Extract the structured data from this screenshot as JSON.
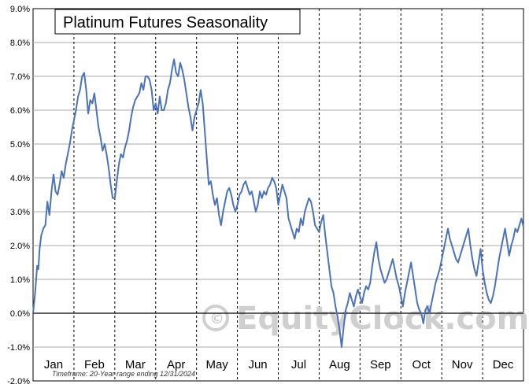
{
  "chart_data": {
    "type": "line",
    "title": "Platinum Futures Seasonality",
    "footnote": "Timeframe: 20-Year range ending 12/31/2024",
    "watermark": "EquityClock.com",
    "ylim": [
      -2.0,
      9.0
    ],
    "y_ticks": [
      "9.0%",
      "8.0%",
      "7.0%",
      "6.0%",
      "5.0%",
      "4.0%",
      "3.0%",
      "2.0%",
      "1.0%",
      "0.0%",
      "-1.0%",
      "-2.0%"
    ],
    "y_tick_values": [
      9,
      8,
      7,
      6,
      5,
      4,
      3,
      2,
      1,
      0,
      -1,
      -2
    ],
    "months": [
      "Jan",
      "Feb",
      "Mar",
      "Apr",
      "May",
      "Jun",
      "Jul",
      "Aug",
      "Sep",
      "Oct",
      "Nov",
      "Dec"
    ],
    "grid": true,
    "zero_line": true,
    "line_color": "#4a73b8",
    "series": [
      {
        "x": [
          0.0,
          0.05,
          0.1,
          0.13,
          0.16,
          0.2,
          0.25,
          0.3,
          0.35,
          0.4,
          0.45,
          0.5,
          0.55,
          0.6,
          0.65,
          0.7,
          0.75,
          0.8,
          0.85,
          0.9,
          0.95,
          1.0,
          1.05,
          1.1,
          1.15,
          1.2,
          1.25,
          1.3,
          1.35,
          1.4,
          1.45,
          1.5,
          1.55,
          1.6,
          1.65,
          1.7,
          1.75,
          1.8,
          1.85,
          1.9,
          1.95,
          2.0,
          2.05,
          2.1,
          2.15,
          2.2,
          2.25,
          2.3,
          2.35,
          2.4,
          2.45,
          2.5,
          2.55,
          2.6,
          2.65,
          2.7,
          2.75,
          2.8,
          2.85,
          2.9,
          2.95,
          3.0,
          3.05,
          3.1,
          3.15,
          3.2,
          3.25,
          3.3,
          3.35,
          3.4,
          3.45,
          3.5,
          3.55,
          3.6,
          3.65,
          3.7,
          3.75,
          3.8,
          3.85,
          3.9,
          3.95,
          4.0,
          4.05,
          4.1,
          4.15,
          4.2,
          4.25,
          4.3,
          4.35,
          4.4,
          4.45,
          4.5,
          4.55,
          4.6,
          4.65,
          4.7,
          4.75,
          4.8,
          4.85,
          4.9,
          4.95,
          5.0,
          5.05,
          5.1,
          5.15,
          5.2,
          5.25,
          5.3,
          5.35,
          5.4,
          5.45,
          5.5,
          5.55,
          5.6,
          5.65,
          5.7,
          5.75,
          5.8,
          5.85,
          5.9,
          5.95,
          6.0,
          6.05,
          6.1,
          6.15,
          6.2,
          6.25,
          6.3,
          6.35,
          6.4,
          6.45,
          6.5,
          6.55,
          6.6,
          6.65,
          6.7,
          6.75,
          6.8,
          6.85,
          6.9,
          6.95,
          7.0,
          7.05,
          7.1,
          7.15,
          7.2,
          7.25,
          7.3,
          7.35,
          7.4,
          7.45,
          7.5,
          7.55,
          7.6,
          7.65,
          7.7,
          7.75,
          7.8,
          7.85,
          7.9,
          7.95,
          8.0,
          8.05,
          8.1,
          8.15,
          8.2,
          8.25,
          8.3,
          8.35,
          8.4,
          8.45,
          8.5,
          8.55,
          8.6,
          8.65,
          8.7,
          8.75,
          8.8,
          8.85,
          8.9,
          8.95,
          9.0,
          9.05,
          9.1,
          9.15,
          9.2,
          9.25,
          9.3,
          9.35,
          9.4,
          9.45,
          9.5,
          9.55,
          9.6,
          9.65,
          9.7,
          9.75,
          9.8,
          9.85,
          9.9,
          9.95,
          10.0,
          10.05,
          10.1,
          10.15,
          10.2,
          10.25,
          10.3,
          10.35,
          10.4,
          10.45,
          10.5,
          10.55,
          10.6,
          10.65,
          10.7,
          10.75,
          10.8,
          10.85,
          10.9,
          10.95,
          11.0,
          11.05,
          11.1,
          11.15,
          11.2,
          11.25,
          11.3,
          11.35,
          11.4,
          11.45,
          11.5,
          11.55,
          11.6,
          11.65,
          11.7,
          11.75,
          11.8,
          11.85,
          11.9,
          11.95,
          12.0
        ],
        "y": [
          0.0,
          0.6,
          1.4,
          1.3,
          1.9,
          2.3,
          2.5,
          2.6,
          3.3,
          2.9,
          3.6,
          4.1,
          3.6,
          3.5,
          3.8,
          4.2,
          4.0,
          4.4,
          4.7,
          5.0,
          5.4,
          5.7,
          6.0,
          6.4,
          6.6,
          7.0,
          7.1,
          6.6,
          5.9,
          6.3,
          6.2,
          6.5,
          6.0,
          5.5,
          5.2,
          4.8,
          5.0,
          4.7,
          4.3,
          3.8,
          3.4,
          3.4,
          3.9,
          4.4,
          4.7,
          4.6,
          4.9,
          5.1,
          5.4,
          5.8,
          6.1,
          6.3,
          6.4,
          6.5,
          6.8,
          6.6,
          7.0,
          7.0,
          6.9,
          6.6,
          6.0,
          6.2,
          5.9,
          6.4,
          6.0,
          6.0,
          6.2,
          6.6,
          6.8,
          7.2,
          7.5,
          7.1,
          7.0,
          7.4,
          7.2,
          6.9,
          6.5,
          6.1,
          5.8,
          5.4,
          5.8,
          6.0,
          6.2,
          6.6,
          6.2,
          5.4,
          4.6,
          3.8,
          3.9,
          3.5,
          3.2,
          3.4,
          2.9,
          2.6,
          3.0,
          3.3,
          3.6,
          3.7,
          3.5,
          3.2,
          3.0,
          3.2,
          3.5,
          3.6,
          3.8,
          3.9,
          3.7,
          3.5,
          3.6,
          3.3,
          3.0,
          3.2,
          3.6,
          3.4,
          3.6,
          3.5,
          3.7,
          3.8,
          4.0,
          3.9,
          3.7,
          3.2,
          3.5,
          3.8,
          3.6,
          3.4,
          2.8,
          2.6,
          2.4,
          2.2,
          2.5,
          2.4,
          2.8,
          2.6,
          3.0,
          3.2,
          3.4,
          3.3,
          3.0,
          2.6,
          2.5,
          2.4,
          2.7,
          2.9,
          2.3,
          1.8,
          1.3,
          0.8,
          0.6,
          0.2,
          -0.1,
          -0.5,
          -1.0,
          -0.4,
          0.1,
          0.3,
          0.6,
          0.4,
          0.2,
          0.5,
          0.7,
          0.5,
          0.3,
          0.6,
          0.8,
          0.7,
          0.9,
          1.4,
          1.8,
          2.1,
          1.6,
          1.3,
          1.1,
          0.9,
          1.0,
          1.2,
          1.4,
          1.6,
          1.3,
          1.0,
          0.8,
          0.5,
          0.2,
          0.6,
          0.9,
          1.2,
          1.5,
          1.1,
          0.7,
          0.3,
          0.1,
          0.0,
          -0.3,
          0.1,
          0.2,
          0.0,
          0.3,
          0.6,
          0.9,
          1.1,
          1.3,
          1.6,
          1.9,
          2.2,
          2.5,
          2.2,
          2.0,
          1.8,
          1.6,
          1.5,
          1.7,
          1.9,
          2.1,
          2.3,
          2.5,
          2.0,
          1.6,
          1.3,
          1.1,
          1.5,
          1.9,
          1.3,
          0.9,
          0.6,
          0.4,
          0.3,
          0.5,
          0.8,
          1.2,
          1.6,
          1.9,
          2.2,
          2.5,
          2.1,
          1.7,
          2.0,
          2.2,
          2.5,
          2.4,
          2.6,
          2.8,
          2.55
        ]
      }
    ]
  }
}
